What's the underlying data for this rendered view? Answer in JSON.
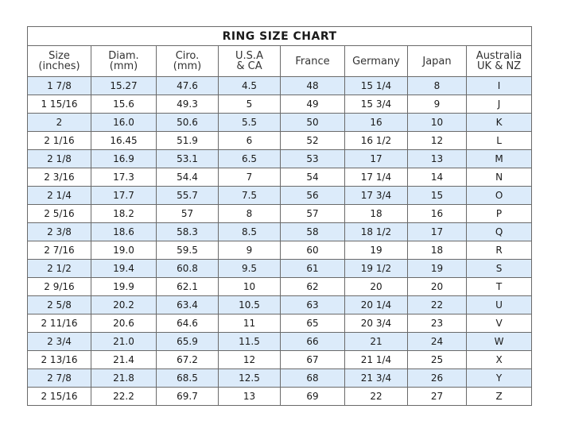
{
  "title": "RING SIZE CHART",
  "headers": [
    [
      "Size",
      "(inches)"
    ],
    [
      "Diam.",
      "(mm)"
    ],
    [
      "Ciro.",
      "(mm)"
    ],
    [
      "U.S.A",
      "& CA"
    ],
    [
      "France",
      ""
    ],
    [
      "Germany",
      ""
    ],
    [
      "Japan",
      ""
    ],
    [
      "Australia",
      "UK & NZ"
    ]
  ],
  "row_shading_color": "#dcebfa",
  "rows": [
    [
      "1 7/8",
      "15.27",
      "47.6",
      "4.5",
      "48",
      "15 1/4",
      "8",
      "I"
    ],
    [
      "1 15/16",
      "15.6",
      "49.3",
      "5",
      "49",
      "15 3/4",
      "9",
      "J"
    ],
    [
      "2",
      "16.0",
      "50.6",
      "5.5",
      "50",
      "16",
      "10",
      "K"
    ],
    [
      "2 1/16",
      "16.45",
      "51.9",
      "6",
      "52",
      "16 1/2",
      "12",
      "L"
    ],
    [
      "2 1/8",
      "16.9",
      "53.1",
      "6.5",
      "53",
      "17",
      "13",
      "M"
    ],
    [
      "2 3/16",
      "17.3",
      "54.4",
      "7",
      "54",
      "17 1/4",
      "14",
      "N"
    ],
    [
      "2 1/4",
      "17.7",
      "55.7",
      "7.5",
      "56",
      "17 3/4",
      "15",
      "O"
    ],
    [
      "2 5/16",
      "18.2",
      "57",
      "8",
      "57",
      "18",
      "16",
      "P"
    ],
    [
      "2 3/8",
      "18.6",
      "58.3",
      "8.5",
      "58",
      "18 1/2",
      "17",
      "Q"
    ],
    [
      "2 7/16",
      "19.0",
      "59.5",
      "9",
      "60",
      "19",
      "18",
      "R"
    ],
    [
      "2 1/2",
      "19.4",
      "60.8",
      "9.5",
      "61",
      "19 1/2",
      "19",
      "S"
    ],
    [
      "2 9/16",
      "19.9",
      "62.1",
      "10",
      "62",
      "20",
      "20",
      "T"
    ],
    [
      "2 5/8",
      "20.2",
      "63.4",
      "10.5",
      "63",
      "20 1/4",
      "22",
      "U"
    ],
    [
      "2 11/16",
      "20.6",
      "64.6",
      "11",
      "65",
      "20 3/4",
      "23",
      "V"
    ],
    [
      "2 3/4",
      "21.0",
      "65.9",
      "11.5",
      "66",
      "21",
      "24",
      "W"
    ],
    [
      "2 13/16",
      "21.4",
      "67.2",
      "12",
      "67",
      "21 1/4",
      "25",
      "X"
    ],
    [
      "2 7/8",
      "21.8",
      "68.5",
      "12.5",
      "68",
      "21 3/4",
      "26",
      "Y"
    ],
    [
      "2 15/16",
      "22.2",
      "69.7",
      "13",
      "69",
      "22",
      "27",
      "Z"
    ]
  ]
}
